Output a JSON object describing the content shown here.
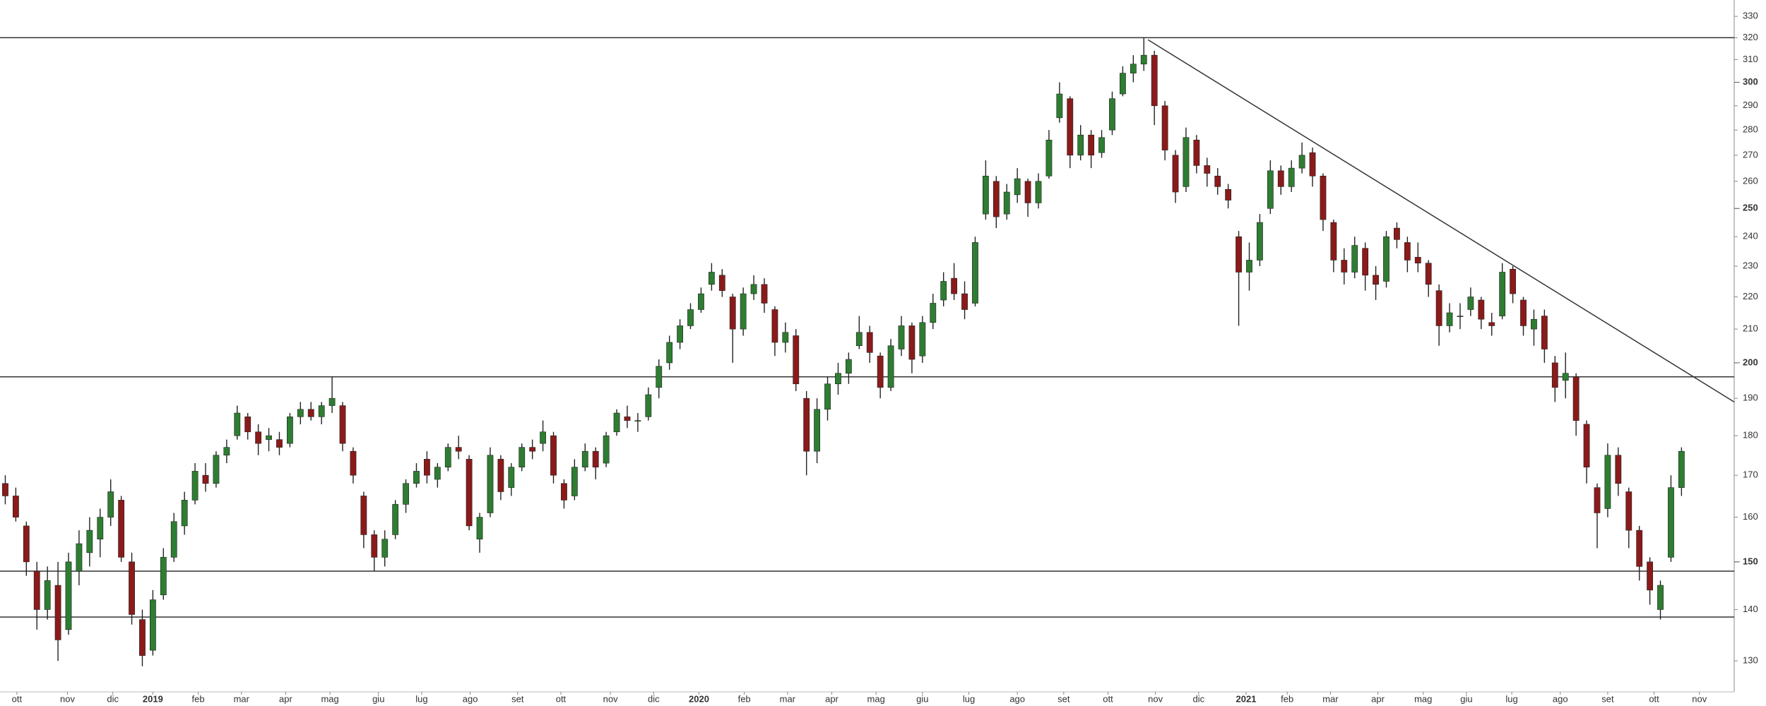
{
  "chart_data": {
    "type": "candlestick",
    "log_scale": true,
    "grid": false,
    "up_color": "#2e7d32",
    "down_color": "#8b1a1a",
    "wick_color": "#222222",
    "line_color": "#333333",
    "xlim": [
      0,
      164.5
    ],
    "ylim": [
      124.3,
      337.9
    ],
    "yticks": [
      130,
      140,
      150,
      160,
      170,
      180,
      190,
      200,
      210,
      220,
      230,
      240,
      250,
      260,
      270,
      280,
      290,
      300,
      310,
      320,
      330
    ],
    "major_yticks": [
      150,
      200,
      250,
      300
    ],
    "xticks": [
      {
        "value": 1.6,
        "label": "ott"
      },
      {
        "value": 6.4,
        "label": "nov"
      },
      {
        "value": 10.7,
        "label": "dic"
      },
      {
        "value": 14.5,
        "label": "2019"
      },
      {
        "value": 18.8,
        "label": "feb"
      },
      {
        "value": 22.9,
        "label": "mar"
      },
      {
        "value": 27.1,
        "label": "apr"
      },
      {
        "value": 31.3,
        "label": "mag"
      },
      {
        "value": 35.9,
        "label": "giu"
      },
      {
        "value": 40.0,
        "label": "lug"
      },
      {
        "value": 44.6,
        "label": "ago"
      },
      {
        "value": 49.1,
        "label": "set"
      },
      {
        "value": 53.2,
        "label": "ott"
      },
      {
        "value": 57.9,
        "label": "nov"
      },
      {
        "value": 62.0,
        "label": "dic"
      },
      {
        "value": 66.3,
        "label": "2020"
      },
      {
        "value": 70.6,
        "label": "feb"
      },
      {
        "value": 74.7,
        "label": "mar"
      },
      {
        "value": 78.9,
        "label": "apr"
      },
      {
        "value": 83.1,
        "label": "mag"
      },
      {
        "value": 87.5,
        "label": "giu"
      },
      {
        "value": 91.9,
        "label": "lug"
      },
      {
        "value": 96.5,
        "label": "ago"
      },
      {
        "value": 100.9,
        "label": "set"
      },
      {
        "value": 105.1,
        "label": "ott"
      },
      {
        "value": 109.6,
        "label": "nov"
      },
      {
        "value": 113.7,
        "label": "dic"
      },
      {
        "value": 118.2,
        "label": "2021"
      },
      {
        "value": 122.1,
        "label": "feb"
      },
      {
        "value": 126.2,
        "label": "mar"
      },
      {
        "value": 130.7,
        "label": "apr"
      },
      {
        "value": 135.0,
        "label": "mag"
      },
      {
        "value": 139.1,
        "label": "giu"
      },
      {
        "value": 143.4,
        "label": "lug"
      },
      {
        "value": 148.0,
        "label": "ago"
      },
      {
        "value": 152.5,
        "label": "set"
      },
      {
        "value": 156.9,
        "label": "ott"
      },
      {
        "value": 161.2,
        "label": "nov"
      }
    ],
    "hlines": [
      320,
      196,
      148,
      138.5
    ],
    "trendline": {
      "x": [
        108.9,
        164.5
      ],
      "y": [
        319,
        189
      ]
    },
    "candles": [
      [
        168,
        170,
        163,
        165
      ],
      [
        165,
        167,
        159,
        160
      ],
      [
        158,
        159,
        147,
        150
      ],
      [
        148,
        150,
        136,
        140
      ],
      [
        140,
        149,
        138,
        146
      ],
      [
        145,
        150,
        130,
        134
      ],
      [
        136,
        152,
        135,
        150
      ],
      [
        148,
        157,
        145,
        154
      ],
      [
        152,
        160,
        149,
        157
      ],
      [
        155,
        162,
        151,
        160
      ],
      [
        160,
        169,
        158,
        166
      ],
      [
        164,
        165,
        150,
        151
      ],
      [
        150,
        152,
        137,
        139
      ],
      [
        138,
        140,
        129,
        131
      ],
      [
        132,
        144,
        131,
        142
      ],
      [
        143,
        153,
        142,
        151
      ],
      [
        151,
        161,
        150,
        159
      ],
      [
        158,
        166,
        156,
        164
      ],
      [
        164,
        173,
        163,
        171
      ],
      [
        170,
        173,
        166,
        168
      ],
      [
        168,
        176,
        167,
        175
      ],
      [
        175,
        179,
        173,
        177
      ],
      [
        180,
        188,
        179,
        186
      ],
      [
        185,
        186,
        179,
        181
      ],
      [
        181,
        183,
        175,
        178
      ],
      [
        179,
        182,
        176,
        180
      ],
      [
        179,
        181,
        175,
        177
      ],
      [
        178,
        186,
        177,
        185
      ],
      [
        185,
        189,
        183,
        187
      ],
      [
        187,
        189,
        184,
        185
      ],
      [
        185,
        189,
        183,
        188
      ],
      [
        188,
        196,
        186,
        190
      ],
      [
        188,
        189,
        176,
        178
      ],
      [
        176,
        177,
        168,
        170
      ],
      [
        165,
        166,
        153,
        156
      ],
      [
        156,
        157,
        148,
        151
      ],
      [
        151,
        157,
        149,
        155
      ],
      [
        156,
        164,
        155,
        163
      ],
      [
        163,
        169,
        161,
        168
      ],
      [
        168,
        173,
        167,
        171
      ],
      [
        174,
        176,
        168,
        170
      ],
      [
        169,
        173,
        167,
        172
      ],
      [
        172,
        178,
        171,
        177
      ],
      [
        177,
        180,
        174,
        176
      ],
      [
        174,
        175,
        157,
        158
      ],
      [
        155,
        161,
        152,
        160
      ],
      [
        161,
        177,
        160,
        175
      ],
      [
        174,
        175,
        164,
        166
      ],
      [
        167,
        173,
        165,
        172
      ],
      [
        172,
        178,
        171,
        177
      ],
      [
        177,
        179,
        174,
        176
      ],
      [
        178,
        184,
        176,
        181
      ],
      [
        180,
        181,
        168,
        170
      ],
      [
        168,
        169,
        162,
        164
      ],
      [
        165,
        174,
        164,
        172
      ],
      [
        172,
        178,
        171,
        176
      ],
      [
        176,
        177,
        169,
        172
      ],
      [
        173,
        181,
        172,
        180
      ],
      [
        181,
        187,
        180,
        186
      ],
      [
        185,
        188,
        182,
        184
      ],
      [
        184,
        186,
        181,
        184
      ],
      [
        185,
        193,
        184,
        191
      ],
      [
        193,
        201,
        190,
        199
      ],
      [
        200,
        208,
        198,
        206
      ],
      [
        206,
        213,
        204,
        211
      ],
      [
        211,
        218,
        210,
        216
      ],
      [
        216,
        223,
        215,
        221
      ],
      [
        224,
        231,
        222,
        228
      ],
      [
        227,
        229,
        220,
        222
      ],
      [
        220,
        221,
        200,
        210
      ],
      [
        210,
        223,
        208,
        221
      ],
      [
        221,
        227,
        219,
        224
      ],
      [
        224,
        226,
        215,
        218
      ],
      [
        216,
        217,
        202,
        206
      ],
      [
        206,
        212,
        203,
        209
      ],
      [
        208,
        210,
        192,
        194
      ],
      [
        190,
        192,
        170,
        176
      ],
      [
        176,
        190,
        173,
        187
      ],
      [
        187,
        196,
        184,
        194
      ],
      [
        194,
        200,
        191,
        197
      ],
      [
        197,
        203,
        194,
        201
      ],
      [
        205,
        214,
        204,
        209
      ],
      [
        209,
        211,
        200,
        203
      ],
      [
        202,
        203,
        190,
        193
      ],
      [
        193,
        207,
        192,
        205
      ],
      [
        204,
        214,
        202,
        211
      ],
      [
        211,
        212,
        197,
        201
      ],
      [
        202,
        214,
        200,
        212
      ],
      [
        212,
        221,
        210,
        218
      ],
      [
        219,
        228,
        217,
        225
      ],
      [
        226,
        231,
        219,
        221
      ],
      [
        221,
        225,
        213,
        216
      ],
      [
        218,
        240,
        217,
        238
      ],
      [
        248,
        268,
        246,
        262
      ],
      [
        260,
        262,
        243,
        247
      ],
      [
        248,
        259,
        246,
        256
      ],
      [
        255,
        265,
        252,
        261
      ],
      [
        260,
        261,
        247,
        252
      ],
      [
        252,
        263,
        250,
        260
      ],
      [
        262,
        280,
        261,
        276
      ],
      [
        285,
        300,
        283,
        295
      ],
      [
        293,
        294,
        265,
        270
      ],
      [
        270,
        282,
        268,
        278
      ],
      [
        278,
        280,
        265,
        270
      ],
      [
        271,
        280,
        269,
        277
      ],
      [
        280,
        296,
        278,
        293
      ],
      [
        295,
        307,
        294,
        304
      ],
      [
        304,
        312,
        300,
        308
      ],
      [
        308,
        320,
        305,
        312
      ],
      [
        312,
        314,
        282,
        290
      ],
      [
        290,
        292,
        268,
        272
      ],
      [
        270,
        272,
        252,
        256
      ],
      [
        258,
        281,
        256,
        277
      ],
      [
        276,
        278,
        263,
        266
      ],
      [
        266,
        269,
        258,
        263
      ],
      [
        262,
        265,
        255,
        258
      ],
      [
        257,
        259,
        250,
        253
      ],
      [
        240,
        242,
        211,
        228
      ],
      [
        228,
        238,
        222,
        232
      ],
      [
        232,
        248,
        230,
        245
      ],
      [
        250,
        268,
        248,
        264
      ],
      [
        264,
        266,
        255,
        258
      ],
      [
        258,
        268,
        256,
        265
      ],
      [
        265,
        275,
        263,
        270
      ],
      [
        271,
        273,
        258,
        262
      ],
      [
        262,
        263,
        242,
        246
      ],
      [
        245,
        246,
        228,
        232
      ],
      [
        232,
        236,
        224,
        228
      ],
      [
        228,
        240,
        226,
        237
      ],
      [
        236,
        238,
        222,
        227
      ],
      [
        227,
        230,
        219,
        224
      ],
      [
        225,
        242,
        223,
        240
      ],
      [
        243,
        245,
        236,
        239
      ],
      [
        238,
        240,
        228,
        232
      ],
      [
        233,
        238,
        228,
        231
      ],
      [
        231,
        232,
        220,
        224
      ],
      [
        222,
        224,
        205,
        211
      ],
      [
        211,
        218,
        209,
        215
      ],
      [
        214,
        218,
        210,
        214
      ],
      [
        216,
        223,
        214,
        220
      ],
      [
        219,
        220,
        210,
        213
      ],
      [
        212,
        215,
        208,
        211
      ],
      [
        214,
        231,
        213,
        228
      ],
      [
        229,
        230,
        218,
        221
      ],
      [
        219,
        220,
        208,
        211
      ],
      [
        210,
        216,
        205,
        213
      ],
      [
        214,
        216,
        200,
        204
      ],
      [
        200,
        202,
        189,
        193
      ],
      [
        195,
        203,
        190,
        197
      ],
      [
        196,
        197,
        180,
        184
      ],
      [
        183,
        184,
        168,
        172
      ],
      [
        167,
        168,
        153,
        161
      ],
      [
        162,
        178,
        160,
        175
      ],
      [
        175,
        177,
        165,
        168
      ],
      [
        166,
        167,
        153,
        157
      ],
      [
        157,
        158,
        146,
        149
      ],
      [
        150,
        151,
        141,
        144
      ],
      [
        140,
        146,
        138,
        145
      ],
      [
        151,
        170,
        150,
        167
      ],
      [
        167,
        177,
        165,
        176
      ]
    ]
  }
}
